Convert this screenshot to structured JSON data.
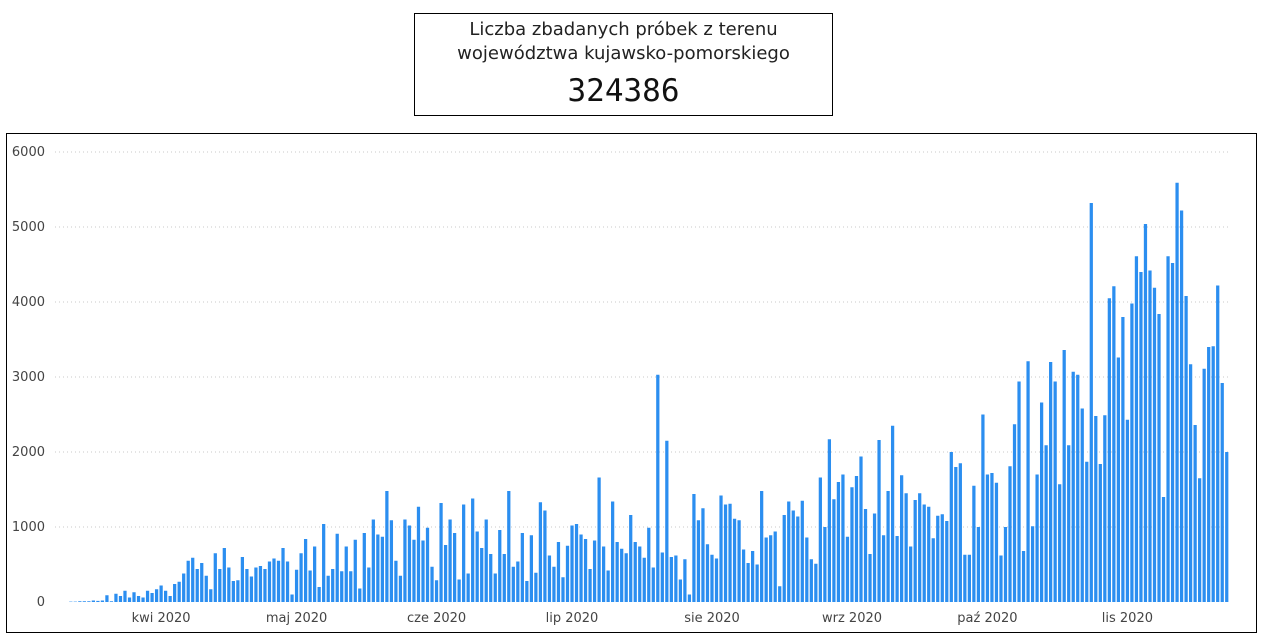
{
  "title_line1": "Liczba zbadanych próbek z terenu",
  "title_line2": "województwa kujawsko-pomorskiego",
  "total": "324386",
  "chart_data": {
    "type": "bar",
    "title": "",
    "xlabel": "",
    "ylabel": "",
    "ylim": [
      0,
      6000
    ],
    "yticks": [
      0,
      1000,
      2000,
      3000,
      4000,
      5000,
      6000
    ],
    "grid": "horizontal dotted",
    "bar_color": "#2b8ef0",
    "x_ticks": [
      "kwi 2020",
      "maj 2020",
      "cze 2020",
      "lip 2020",
      "sie 2020",
      "wrz 2020",
      "paź 2020",
      "lis 2020"
    ],
    "values": [
      0,
      0,
      0,
      5,
      5,
      10,
      10,
      10,
      20,
      15,
      20,
      90,
      10,
      110,
      80,
      150,
      60,
      130,
      80,
      60,
      150,
      120,
      170,
      220,
      150,
      80,
      240,
      270,
      380,
      550,
      590,
      440,
      520,
      350,
      170,
      650,
      440,
      720,
      460,
      280,
      290,
      600,
      440,
      340,
      460,
      480,
      440,
      540,
      580,
      550,
      720,
      540,
      100,
      430,
      650,
      840,
      420,
      740,
      200,
      1040,
      350,
      440,
      910,
      410,
      740,
      410,
      830,
      180,
      920,
      460,
      1100,
      900,
      870,
      1480,
      1090,
      550,
      350,
      1100,
      1020,
      830,
      1270,
      820,
      990,
      470,
      290,
      1320,
      760,
      1100,
      920,
      300,
      1300,
      380,
      1380,
      940,
      720,
      1100,
      640,
      380,
      960,
      640,
      1480,
      470,
      540,
      920,
      280,
      890,
      390,
      1330,
      1220,
      620,
      470,
      800,
      330,
      750,
      1020,
      1040,
      900,
      840,
      440,
      820,
      1660,
      740,
      420,
      1340,
      800,
      710,
      650,
      1160,
      800,
      740,
      590,
      990,
      460,
      3030,
      660,
      2150,
      600,
      620,
      300,
      570,
      100,
      1440,
      1090,
      1250,
      770,
      630,
      580,
      1420,
      1300,
      1310,
      1110,
      1090,
      700,
      520,
      680,
      500,
      1480,
      860,
      890,
      940,
      210,
      1160,
      1340,
      1220,
      1140,
      1350,
      860,
      570,
      510,
      1660,
      1000,
      2170,
      1370,
      1600,
      1700,
      870,
      1530,
      1680,
      1940,
      1240,
      640,
      1180,
      2160,
      890,
      1480,
      2350,
      880,
      1690,
      1450,
      740,
      1360,
      1450,
      1300,
      1270,
      850,
      1150,
      1170,
      1080,
      2000,
      1800,
      1850,
      630,
      630,
      1550,
      1000,
      2500,
      1700,
      1720,
      1590,
      620,
      1000,
      1810,
      2370,
      2940,
      680,
      3210,
      1010,
      1700,
      2660,
      2090,
      3200,
      2940,
      1570,
      3360,
      2090,
      3070,
      3030,
      2580,
      1870,
      5320,
      2480,
      1840,
      2490,
      4050,
      4210,
      3260,
      3800,
      2430,
      3980,
      4610,
      4400,
      5040,
      4420,
      4190,
      3840,
      1400,
      4610,
      4520,
      5590,
      5220,
      4080,
      3170,
      2360,
      1650,
      3110,
      3400,
      3410,
      4220,
      2920,
      2000
    ]
  }
}
